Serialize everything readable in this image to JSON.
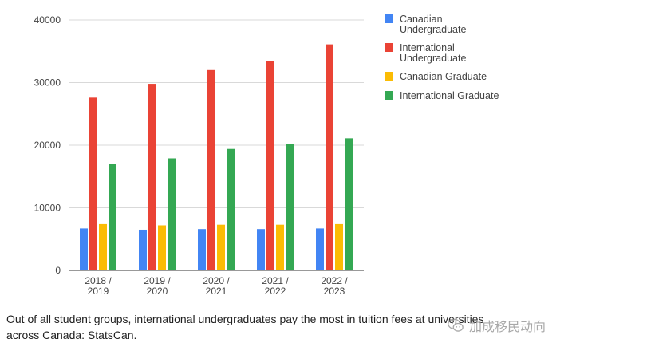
{
  "chart_data": {
    "type": "bar",
    "title": "",
    "xlabel": "",
    "ylabel": "",
    "ylim": [
      0,
      40000
    ],
    "yticks": [
      "40000",
      "30000",
      "20000",
      "10000",
      "0"
    ],
    "categories": [
      [
        "2018 /",
        "2019"
      ],
      [
        "2019 /",
        "2020"
      ],
      [
        "2020 /",
        "2021"
      ],
      [
        "2021 /",
        "2022"
      ],
      [
        "2022 /",
        "2023"
      ]
    ],
    "series": [
      {
        "name": [
          "Canadian",
          "Undergraduate"
        ],
        "color": "#4285f4",
        "values": [
          6700,
          6500,
          6600,
          6600,
          6700
        ]
      },
      {
        "name": [
          "International",
          "Undergraduate"
        ],
        "color": "#ea4335",
        "values": [
          27600,
          29800,
          32000,
          33500,
          36100
        ]
      },
      {
        "name": [
          "Canadian Graduate"
        ],
        "color": "#fbbc04",
        "values": [
          7400,
          7200,
          7300,
          7300,
          7400
        ]
      },
      {
        "name": [
          "International Graduate"
        ],
        "color": "#34a853",
        "values": [
          17000,
          17900,
          19400,
          20200,
          21100
        ]
      }
    ],
    "grid": true,
    "legend": "right"
  },
  "caption": {
    "line1": "Out of all student groups, international undergraduates pay the most in tuition fees at universities",
    "line2": "across Canada: StatsCan."
  },
  "watermark": {
    "text": "加成移民动向",
    "icon": "wechat-icon"
  }
}
